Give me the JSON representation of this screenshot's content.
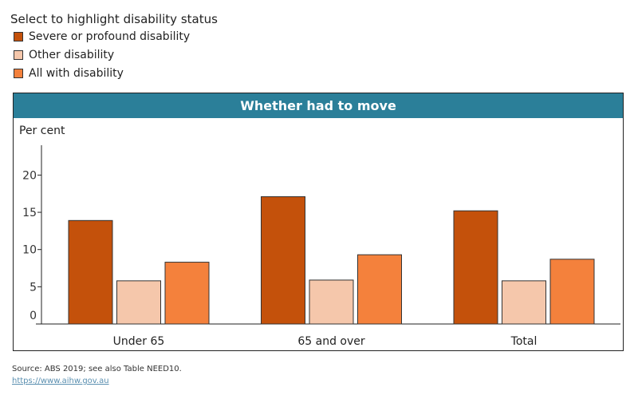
{
  "legend": {
    "title": "Select to highlight disability status",
    "items": [
      {
        "label": "Severe or profound disability",
        "color": "#c4510b"
      },
      {
        "label": "Other disability",
        "color": "#f5c7ab"
      },
      {
        "label": "All with disability",
        "color": "#f4813c"
      }
    ]
  },
  "chart_data": {
    "type": "bar",
    "title": "Whether had to move",
    "ylabel": "Per cent",
    "ylim": [
      0,
      24
    ],
    "yticks": [
      0,
      5,
      10,
      15,
      20
    ],
    "categories": [
      "Under 65",
      "65 and over",
      "Total"
    ],
    "series": [
      {
        "name": "Severe or profound disability",
        "values": [
          13.9,
          17.1,
          15.2
        ]
      },
      {
        "name": "Other disability",
        "values": [
          5.8,
          5.9,
          5.8
        ]
      },
      {
        "name": "All with disability",
        "values": [
          8.3,
          9.3,
          8.7
        ]
      }
    ],
    "header_color": "#2b7f99"
  },
  "footer": {
    "source": "Source: ABS 2019; see also Table NEED10.",
    "link": "https://www.aihw.gov.au"
  }
}
